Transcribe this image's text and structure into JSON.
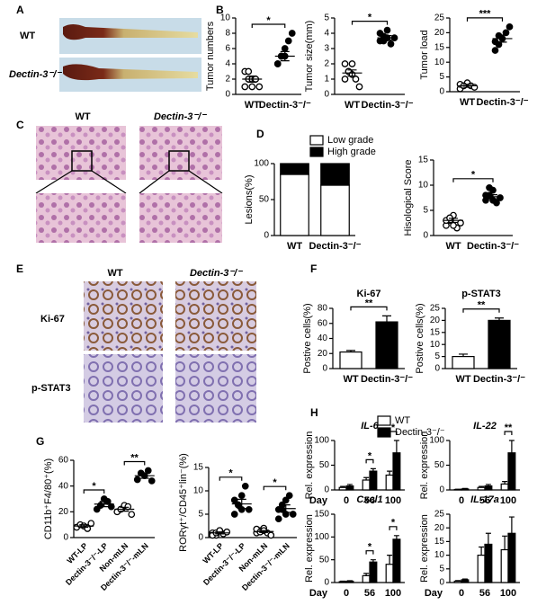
{
  "figure": {
    "panel_letters": [
      "A",
      "B",
      "C",
      "D",
      "E",
      "F",
      "G",
      "H"
    ],
    "a_labels": [
      "WT",
      "Dectin-3⁻/⁻"
    ],
    "c_labels": [
      "WT",
      "Dectin-3⁻/⁻"
    ],
    "e_columns": [
      "WT",
      "Dectin-3⁻/⁻"
    ],
    "e_rows": [
      "Ki-67",
      "p-STAT3"
    ]
  },
  "chart_data": [
    {
      "type": "dot",
      "ylabel": "Tumor numbers",
      "categories": [
        "WT",
        "Dectin-3⁻/⁻"
      ],
      "points": [
        [
          1,
          2,
          2,
          2,
          1,
          3,
          3,
          1
        ],
        [
          4,
          5,
          6,
          7,
          8,
          4,
          5,
          5
        ]
      ],
      "means": [
        2,
        5
      ],
      "errors": [
        0.4,
        0.6
      ],
      "point_colors": [
        "#ffffff",
        "#000000"
      ],
      "ylim": [
        0,
        10
      ],
      "yticks": [
        0,
        2,
        4,
        6,
        8,
        10
      ],
      "significance": [
        "*"
      ]
    },
    {
      "type": "dot",
      "ylabel": "Tumor size(mm)",
      "categories": [
        "WT",
        "Dectin-3⁻/⁻"
      ],
      "points": [
        [
          1,
          1.5,
          2,
          1,
          0.5,
          2,
          1.5,
          1.3
        ],
        [
          3.5,
          3.8,
          4.2,
          3.3,
          3.7,
          4,
          3.5,
          3.7
        ]
      ],
      "means": [
        1.4,
        3.7
      ],
      "errors": [
        0.2,
        0.15
      ],
      "point_colors": [
        "#ffffff",
        "#000000"
      ],
      "ylim": [
        0,
        5
      ],
      "yticks": [
        0,
        1,
        2,
        3,
        4,
        5
      ],
      "significance": [
        "*"
      ]
    },
    {
      "type": "dot",
      "ylabel": "Tumor load",
      "categories": [
        "WT",
        "Dectin-3⁻/⁻"
      ],
      "points": [
        [
          1,
          2,
          3,
          2,
          1.5,
          2.5,
          2
        ],
        [
          14,
          16,
          18,
          20,
          22,
          17,
          19
        ]
      ],
      "means": [
        2,
        18
      ],
      "errors": [
        0.5,
        1.2
      ],
      "point_colors": [
        "#ffffff",
        "#000000"
      ],
      "ylim": [
        0,
        25
      ],
      "yticks": [
        0,
        5,
        10,
        15,
        20,
        25
      ],
      "significance": [
        "***"
      ]
    },
    {
      "type": "stacked_bar",
      "ylabel": "Lesions(%)",
      "categories": [
        "WT",
        "Dectin-3⁻/⁻"
      ],
      "series": [
        {
          "name": "Low grade",
          "color": "#ffffff",
          "values": [
            85,
            70
          ]
        },
        {
          "name": "High grade",
          "color": "#000000",
          "values": [
            15,
            30
          ]
        }
      ],
      "ylim": [
        0,
        100
      ],
      "yticks": [
        0,
        50,
        100
      ]
    },
    {
      "type": "dot",
      "ylabel": "Hisological Score",
      "categories": [
        "WT",
        "Dectin-3⁻/⁻"
      ],
      "points": [
        [
          2,
          3,
          4,
          1.5,
          2.5,
          3,
          3.5,
          2
        ],
        [
          7,
          8,
          9,
          6.5,
          7.5,
          8,
          9.5,
          7
        ]
      ],
      "means": [
        3,
        7.7
      ],
      "errors": [
        0.4,
        0.4
      ],
      "point_colors": [
        "#ffffff",
        "#000000"
      ],
      "ylim": [
        0,
        15
      ],
      "yticks": [
        0,
        5,
        10,
        15
      ],
      "significance": [
        "*"
      ]
    },
    {
      "type": "bar",
      "title": "Ki-67",
      "ylabel": "Postive cells(%)",
      "categories": [
        "WT",
        "Dectin-3⁻/⁻"
      ],
      "values": [
        22,
        62
      ],
      "errors": [
        2,
        8
      ],
      "colors": [
        "#ffffff",
        "#000000"
      ],
      "ylim": [
        0,
        80
      ],
      "yticks": [
        0,
        20,
        40,
        60,
        80
      ],
      "significance": [
        "**"
      ]
    },
    {
      "type": "bar",
      "title": "p-STAT3",
      "ylabel": "Postive cells(%)",
      "categories": [
        "WT",
        "Dectin-3⁻/⁻"
      ],
      "values": [
        5,
        20
      ],
      "errors": [
        1,
        1
      ],
      "colors": [
        "#ffffff",
        "#000000"
      ],
      "ylim": [
        0,
        25
      ],
      "yticks": [
        0,
        5,
        10,
        15,
        20,
        25
      ],
      "significance": [
        "**"
      ]
    },
    {
      "type": "dot",
      "ylabel": "CD11b⁺F4/80⁺(%)",
      "categories": [
        "WT-LP",
        "Dectin-3⁻/⁻-LP",
        "Non-mLN",
        "Dectin-3⁻/⁻-mLN"
      ],
      "points": [
        [
          8,
          10,
          9,
          7,
          11
        ],
        [
          22,
          25,
          30,
          28,
          24
        ],
        [
          20,
          22,
          25,
          24,
          18
        ],
        [
          45,
          50,
          48,
          52,
          44
        ]
      ],
      "means": [
        9,
        26,
        22,
        48
      ],
      "errors": [
        1,
        2,
        1.5,
        2
      ],
      "point_colors": [
        "#ffffff",
        "#000000",
        "#ffffff",
        "#000000"
      ],
      "ylim": [
        0,
        60
      ],
      "yticks": [
        0,
        20,
        40,
        60
      ],
      "significance": [
        "*",
        "**"
      ]
    },
    {
      "type": "dot",
      "ylabel": "RORγt⁺/CD45⁺lin⁻(%)",
      "categories": [
        "WT-LP",
        "Dectin-3⁻/⁻-LP",
        "Non-mLN",
        "Dectin-3⁻/⁻-mLN"
      ],
      "points": [
        [
          1,
          0.5,
          1.5,
          0.8,
          1.2,
          0.5,
          1,
          1.5
        ],
        [
          5,
          7,
          9,
          11,
          6,
          8,
          7,
          6
        ],
        [
          1,
          1.5,
          2,
          1,
          0.5,
          1.8,
          1.2,
          1.5
        ],
        [
          4,
          6,
          8,
          9,
          5,
          6,
          7,
          5
        ]
      ],
      "means": [
        1,
        7.2,
        1.3,
        6.2
      ],
      "errors": [
        0.2,
        1,
        0.2,
        0.8
      ],
      "point_colors": [
        "#ffffff",
        "#000000",
        "#ffffff",
        "#000000"
      ],
      "ylim": [
        0,
        15
      ],
      "yticks": [
        0,
        5,
        10,
        15
      ],
      "significance": [
        "*",
        "*"
      ]
    },
    {
      "type": "grouped_bar",
      "title": "IL-6",
      "ylabel": "Rel. expression",
      "xlabel": "Day",
      "categories": [
        "0",
        "56",
        "100"
      ],
      "series": [
        {
          "name": "WT",
          "color": "#ffffff",
          "values": [
            5,
            20,
            30
          ],
          "errors": [
            2,
            5,
            8
          ]
        },
        {
          "name": "Dectin-3⁻/⁻",
          "color": "#000000",
          "values": [
            8,
            38,
            75
          ],
          "errors": [
            3,
            5,
            25
          ]
        }
      ],
      "ylim": [
        0,
        100
      ],
      "yticks": [
        0,
        50,
        100
      ],
      "significance": [
        null,
        "*",
        "*"
      ]
    },
    {
      "type": "grouped_bar",
      "title": "IL-22",
      "ylabel": "Rel. expression",
      "categories": [
        "0",
        "56",
        "100"
      ],
      "series": [
        {
          "color": "#ffffff",
          "values": [
            1,
            5,
            12
          ],
          "errors": [
            0.5,
            2,
            5
          ]
        },
        {
          "color": "#000000",
          "values": [
            2,
            8,
            75
          ],
          "errors": [
            1,
            3,
            25
          ]
        }
      ],
      "ylim": [
        0,
        100
      ],
      "yticks": [
        0,
        50,
        100
      ],
      "significance": [
        null,
        null,
        "**"
      ]
    },
    {
      "type": "grouped_bar",
      "title": "Cxcl1",
      "ylabel": "Rel. expression",
      "xlabel": "Day",
      "categories": [
        "0",
        "56",
        "100"
      ],
      "series": [
        {
          "color": "#ffffff",
          "values": [
            2,
            15,
            40
          ],
          "errors": [
            1,
            5,
            20
          ]
        },
        {
          "color": "#000000",
          "values": [
            3,
            45,
            95
          ],
          "errors": [
            1,
            5,
            8
          ]
        }
      ],
      "ylim": [
        0,
        150
      ],
      "yticks": [
        0,
        50,
        100,
        150
      ],
      "significance": [
        null,
        "*",
        "*"
      ]
    },
    {
      "type": "grouped_bar",
      "title": "IL-17a",
      "ylabel": "Rel. expression",
      "xlabel": "Day",
      "categories": [
        "0",
        "56",
        "100"
      ],
      "series": [
        {
          "color": "#ffffff",
          "values": [
            0.5,
            10,
            12
          ],
          "errors": [
            0.2,
            3,
            5
          ]
        },
        {
          "color": "#000000",
          "values": [
            1,
            14,
            18
          ],
          "errors": [
            0.3,
            4,
            6
          ]
        }
      ],
      "ylim": [
        0,
        25
      ],
      "yticks": [
        0,
        5,
        10,
        15,
        20,
        25
      ]
    }
  ]
}
